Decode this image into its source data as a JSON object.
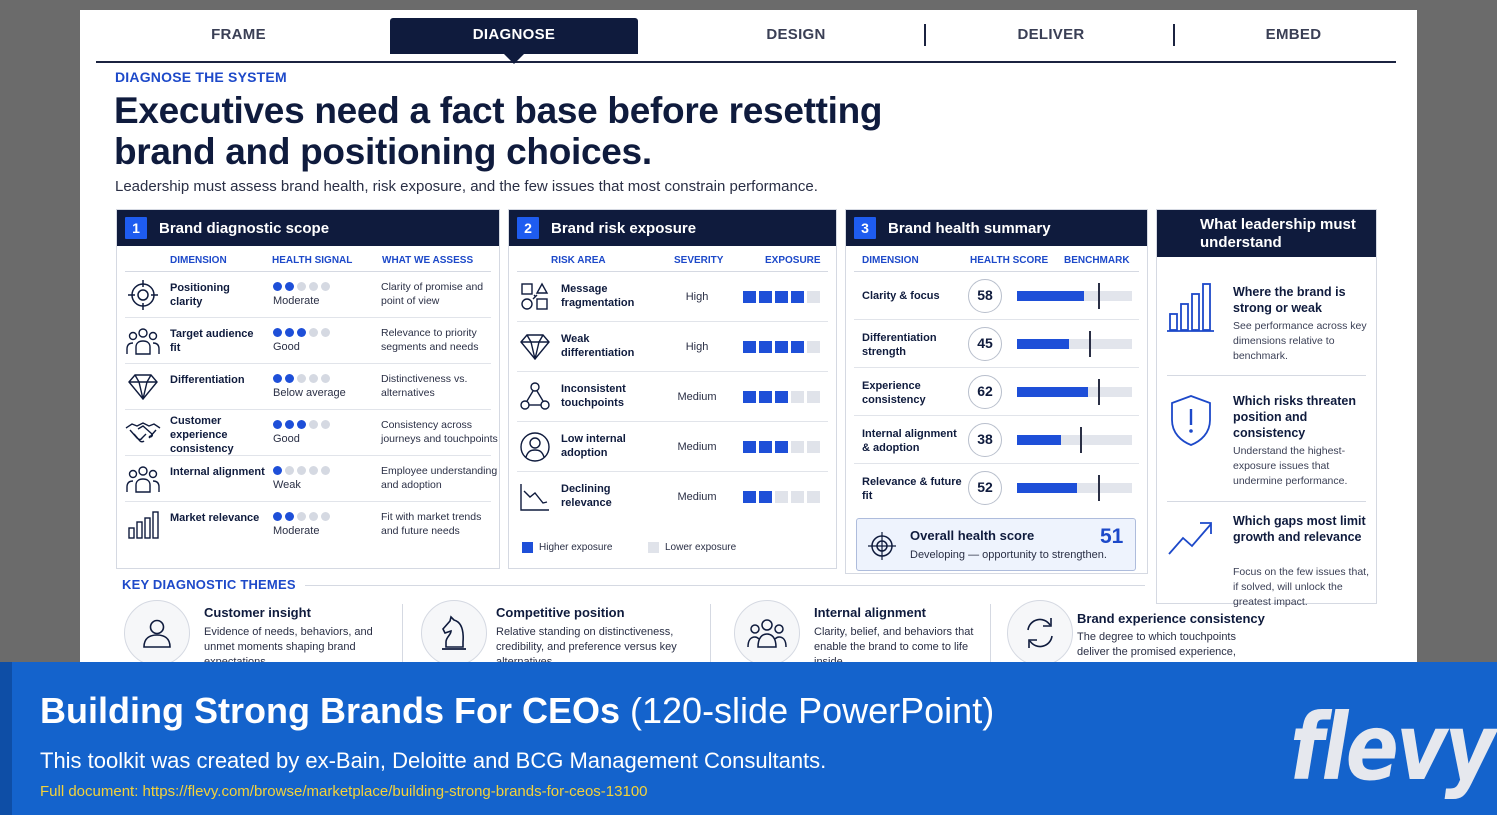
{
  "tabs": [
    "FRAME",
    "DIAGNOSE",
    "DESIGN",
    "DELIVER",
    "EMBED"
  ],
  "eyebrow": "DIAGNOSE THE SYSTEM",
  "headline": "Executives need a fact base before resetting brand and positioning choices.",
  "subhead": "Leadership must assess brand health, risk exposure, and the few issues that most constrain performance.",
  "panel1": {
    "num": "1",
    "title": "Brand diagnostic scope",
    "cols": [
      "DIMENSION",
      "HEALTH SIGNAL",
      "WHAT WE ASSESS"
    ],
    "rows": [
      {
        "icon": "target-icon",
        "dim": "Positioning clarity",
        "level": 2,
        "signal": "Moderate",
        "assess": "Clarity of promise and point of view"
      },
      {
        "icon": "audience-icon",
        "dim": "Target audience fit",
        "level": 3,
        "signal": "Good",
        "assess": "Relevance to priority segments and needs"
      },
      {
        "icon": "diamond-icon",
        "dim": "Differentiation",
        "level": 2,
        "signal": "Below average",
        "assess": "Distinctiveness vs. alternatives"
      },
      {
        "icon": "handshake-icon",
        "dim": "Customer experience consistency",
        "level": 3,
        "signal": "Good",
        "assess": "Consistency across journeys and touchpoints"
      },
      {
        "icon": "team-icon",
        "dim": "Internal alignment",
        "level": 1,
        "signal": "Weak",
        "assess": "Employee understanding and adoption"
      },
      {
        "icon": "bar-chart-icon",
        "dim": "Market relevance",
        "level": 2,
        "signal": "Moderate",
        "assess": "Fit with market trends and future needs"
      }
    ]
  },
  "panel2": {
    "num": "2",
    "title": "Brand risk exposure",
    "cols": [
      "RISK AREA",
      "SEVERITY",
      "EXPOSURE"
    ],
    "rows": [
      {
        "icon": "fragment-icon",
        "area": "Message fragmentation",
        "severity": "High",
        "exposure": 4
      },
      {
        "icon": "diamond-icon",
        "area": "Weak differentiation",
        "severity": "High",
        "exposure": 4
      },
      {
        "icon": "network-icon",
        "area": "Inconsistent touchpoints",
        "severity": "Medium",
        "exposure": 3
      },
      {
        "icon": "person-icon",
        "area": "Low internal adoption",
        "severity": "Medium",
        "exposure": 3
      },
      {
        "icon": "decline-icon",
        "area": "Declining relevance",
        "severity": "Medium",
        "exposure": 2
      }
    ],
    "legend_high": "Higher exposure",
    "legend_low": "Lower exposure"
  },
  "panel3": {
    "num": "3",
    "title": "Brand health summary",
    "cols": [
      "DIMENSION",
      "HEALTH SCORE",
      "BENCHMARK"
    ],
    "rows": [
      {
        "dim": "Clarity & focus",
        "score": "58",
        "value": 58,
        "benchmark": 70
      },
      {
        "dim": "Differentiation strength",
        "score": "45",
        "value": 45,
        "benchmark": 63
      },
      {
        "dim": "Experience consistency",
        "score": "62",
        "value": 62,
        "benchmark": 70
      },
      {
        "dim": "Internal alignment & adoption",
        "score": "38",
        "value": 38,
        "benchmark": 55
      },
      {
        "dim": "Relevance & future fit",
        "score": "52",
        "value": 52,
        "benchmark": 70
      }
    ],
    "overall_label": "Overall health score",
    "overall_score": "51",
    "overall_note": "Developing — opportunity to strengthen."
  },
  "leadership": {
    "title": "What leadership must understand",
    "items": [
      {
        "icon": "bar-chart-icon",
        "title": "Where the brand is strong or weak",
        "desc": "See performance across key dimensions relative to benchmark."
      },
      {
        "icon": "shield-alert-icon",
        "title": "Which risks threaten position and consistency",
        "desc": "Understand the highest-exposure issues that undermine performance."
      },
      {
        "icon": "trend-up-icon",
        "title": "Which gaps most limit growth and relevance",
        "desc": "Focus on the few issues that, if solved, will unlock the greatest impact."
      }
    ]
  },
  "themes": {
    "title": "KEY DIAGNOSTIC THEMES",
    "items": [
      {
        "icon": "user-icon",
        "title": "Customer insight",
        "desc": "Evidence of needs, behaviors, and unmet moments shaping brand expectations."
      },
      {
        "icon": "chess-knight-icon",
        "title": "Competitive position",
        "desc": "Relative standing on distinctiveness, credibility, and preference versus key alternatives."
      },
      {
        "icon": "team-icon",
        "title": "Internal alignment",
        "desc": "Clarity, belief, and behaviors that enable the brand to come to life inside."
      },
      {
        "icon": "cycle-icon",
        "title": "Brand experience consistency",
        "desc": "The degree to which touchpoints deliver the promised experience,"
      }
    ]
  },
  "footer": {
    "title_bold": "Building Strong Brands For CEOs",
    "title_light": " (120-slide PowerPoint)",
    "subtitle": "This toolkit was created by ex-Bain, Deloitte and BCG Management Consultants.",
    "link": "Full document: https://flevy.com/browse/marketplace/building-strong-brands-for-ceos-13100",
    "logo": "flevy"
  }
}
